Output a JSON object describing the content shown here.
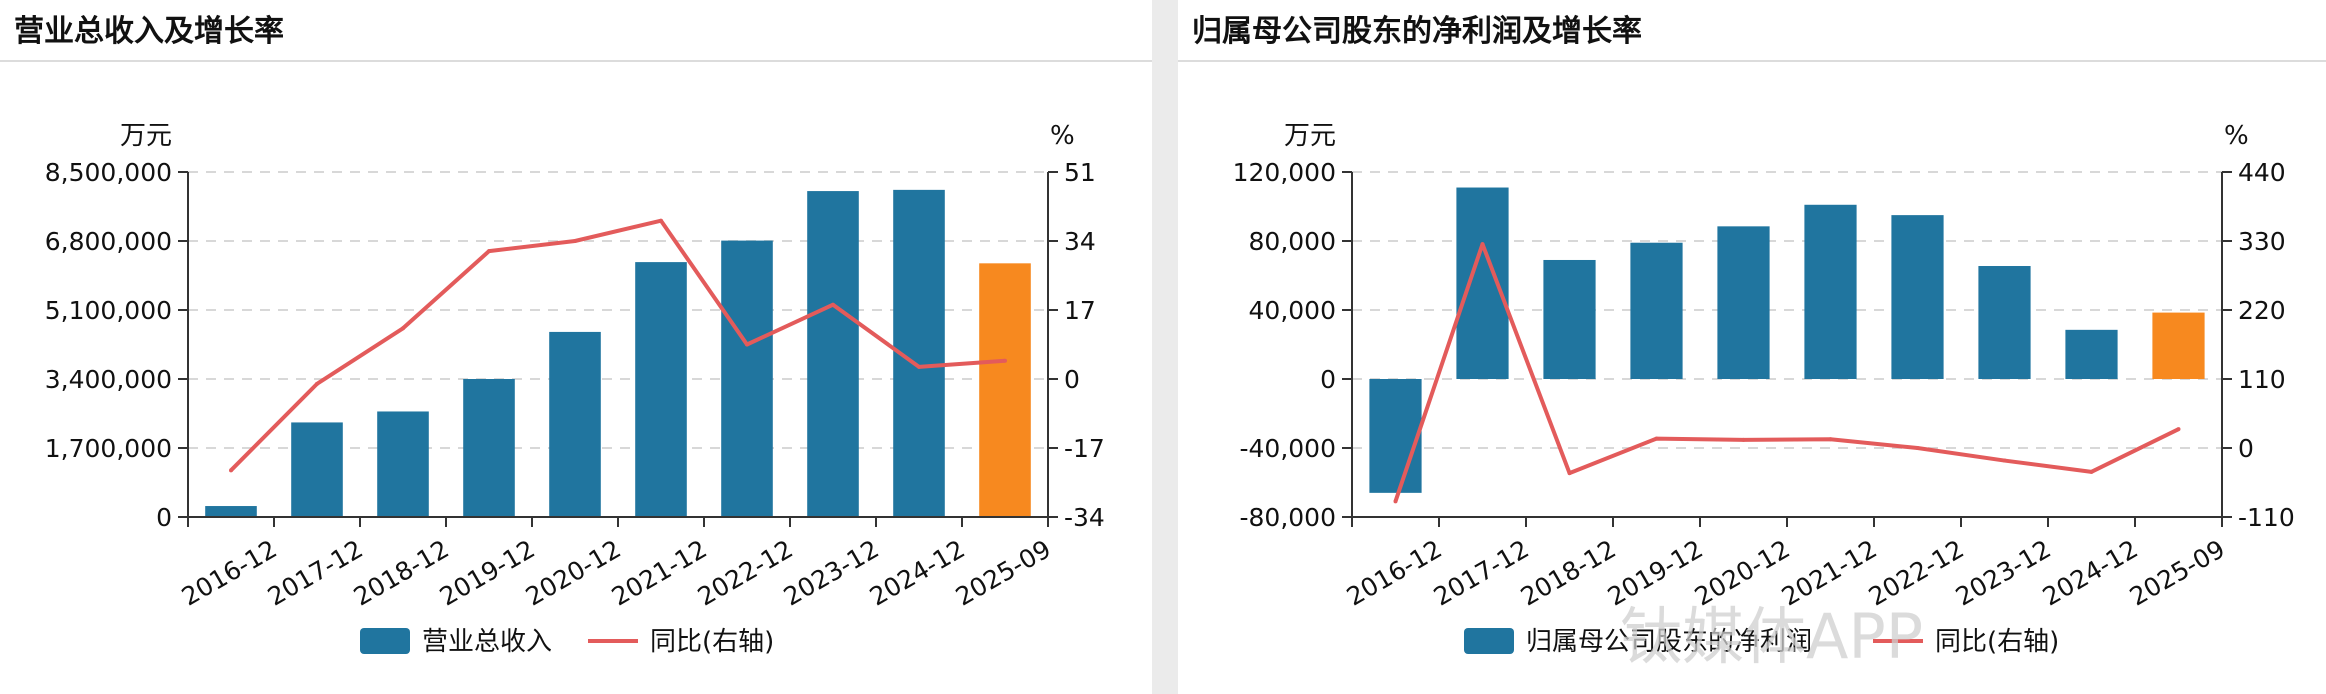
{
  "watermark": "钛媒体APP",
  "colors": {
    "bar": "#20759f",
    "bar_highlight": "#f7891f",
    "line": "#e35b5b",
    "grid": "#d8d8d8",
    "axis": "#333333"
  },
  "chart_data": [
    {
      "type": "bar",
      "title": "营业总收入及增长率",
      "ylabel_left": "万元",
      "ylabel_right": "%",
      "categories": [
        "2016-12",
        "2017-12",
        "2018-12",
        "2019-12",
        "2020-12",
        "2021-12",
        "2022-12",
        "2023-12",
        "2024-12",
        "2025-09"
      ],
      "ylim": [
        0,
        8500000
      ],
      "y2lim": [
        -34,
        51
      ],
      "yticks": [
        0,
        1700000,
        3400000,
        5100000,
        6800000,
        8500000
      ],
      "ytick_labels": [
        "0",
        "1,700,000",
        "3,400,000",
        "5,100,000",
        "6,800,000",
        "8,500,000"
      ],
      "y2ticks": [
        -34,
        -17,
        0,
        17,
        34,
        51
      ],
      "y2tick_labels": [
        "-34",
        "-17",
        "0",
        "17",
        "34",
        "51"
      ],
      "series": [
        {
          "name": "营业总收入",
          "type": "bar",
          "axis": "left",
          "values": [
            270000,
            2330000,
            2600000,
            3400000,
            4560000,
            6280000,
            6810000,
            8030000,
            8060000,
            6250000
          ],
          "highlight_index": 9
        },
        {
          "name": "同比(右轴)",
          "type": "line",
          "axis": "right",
          "values": [
            -22.5,
            -1.2,
            12.5,
            31.5,
            34,
            39,
            8.5,
            18.3,
            3,
            4.5
          ]
        }
      ],
      "legend": [
        "营业总收入",
        "同比(右轴)"
      ],
      "legend_position": "bottom"
    },
    {
      "type": "bar",
      "title": "归属母公司股东的净利润及增长率",
      "ylabel_left": "万元",
      "ylabel_right": "%",
      "categories": [
        "2016-12",
        "2017-12",
        "2018-12",
        "2019-12",
        "2020-12",
        "2021-12",
        "2022-12",
        "2023-12",
        "2024-12",
        "2025-09"
      ],
      "ylim": [
        -80000,
        120000
      ],
      "y2lim": [
        -110,
        440
      ],
      "yticks": [
        -80000,
        -40000,
        0,
        40000,
        80000,
        120000
      ],
      "ytick_labels": [
        "-80,000",
        "-40,000",
        "0",
        "40,000",
        "80,000",
        "120,000"
      ],
      "y2ticks": [
        -110,
        0,
        110,
        220,
        330,
        440
      ],
      "y2tick_labels": [
        "-110",
        "0",
        "110",
        "220",
        "330",
        "440"
      ],
      "series": [
        {
          "name": "归属母公司股东的净利润",
          "type": "bar",
          "axis": "left",
          "values": [
            -66000,
            111000,
            69000,
            79000,
            88500,
            101000,
            95000,
            65500,
            28500,
            38500
          ],
          "highlight_index": 9
        },
        {
          "name": "同比(右轴)",
          "type": "line",
          "axis": "right",
          "values": [
            -85,
            325,
            -40,
            15,
            13,
            14,
            0,
            -20,
            -38,
            30
          ]
        }
      ],
      "legend": [
        "归属母公司股东的净利润",
        "同比(右轴)"
      ],
      "legend_position": "bottom"
    }
  ]
}
